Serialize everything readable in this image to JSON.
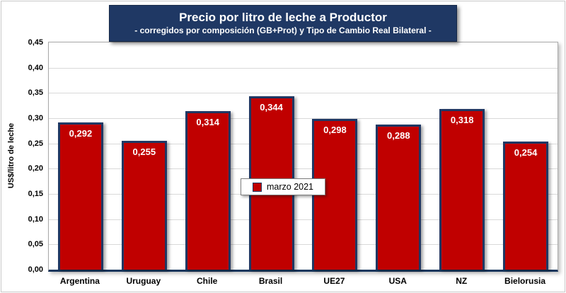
{
  "header": {
    "title": "Precio por litro de leche a Productor",
    "subtitle": "- corregidos por composición (GB+Prot) y Tipo de Cambio Real Bilateral -"
  },
  "legend": {
    "label": "marzo 2021",
    "swatch_color": "#c00000"
  },
  "colors": {
    "bar_fill": "#c00000",
    "bar_border": "#1f3864",
    "title_background": "#1f3864",
    "gridline": "#d9d9d9"
  },
  "chart_data": {
    "type": "bar",
    "title": "Precio por litro de leche a Productor",
    "subtitle": "- corregidos por composición (GB+Prot) y Tipo de Cambio Real Bilateral -",
    "xlabel": "",
    "ylabel": "US$/litro de leche",
    "categories": [
      "Argentina",
      "Uruguay",
      "Chile",
      "Brasil",
      "UE27",
      "USA",
      "NZ",
      "Bielorusia"
    ],
    "values": [
      0.292,
      0.255,
      0.314,
      0.344,
      0.298,
      0.288,
      0.318,
      0.254
    ],
    "value_labels": [
      "0,292",
      "0,255",
      "0,314",
      "0,344",
      "0,298",
      "0,288",
      "0,318",
      "0,254"
    ],
    "series_name": "marzo 2021",
    "ylim": [
      0,
      0.45
    ],
    "yticks": [
      0,
      0.05,
      0.1,
      0.15,
      0.2,
      0.25,
      0.3,
      0.35,
      0.4,
      0.45
    ],
    "ytick_labels": [
      "0,00",
      "0,05",
      "0,10",
      "0,15",
      "0,20",
      "0,25",
      "0,30",
      "0,35",
      "0,40",
      "0,45"
    ],
    "grid": true,
    "legend_position": "bottom-center-inside"
  }
}
